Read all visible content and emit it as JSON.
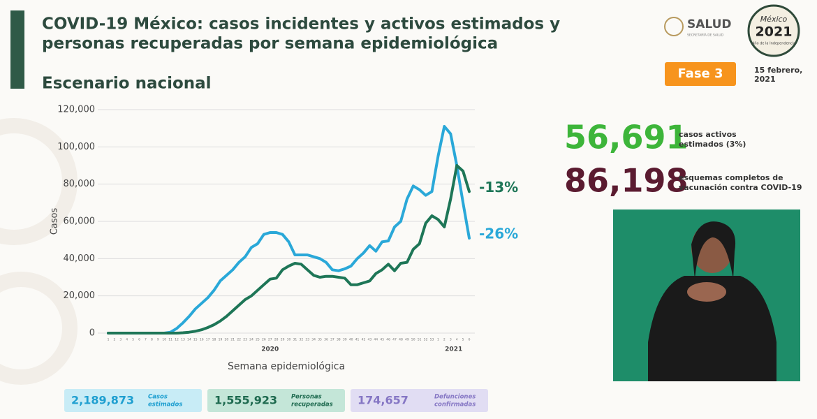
{
  "header": {
    "title_lines": [
      "COVID-19 México: casos incidentes y activos estimados y",
      "personas recuperadas por semana epidemiológica"
    ],
    "subtitle": "Escenario nacional"
  },
  "logos": {
    "salud": "SALUD",
    "salud_sub": "SECRETARÍA DE SALUD",
    "badge_top": "México",
    "badge_year": "2021",
    "badge_sub": "Año de la Independencia"
  },
  "phase": "Fase 3",
  "date_lines": [
    "15 febrero,",
    "2021"
  ],
  "highlights": [
    {
      "value": "56,691",
      "label_lines": [
        "casos activos",
        "estimados (3%)"
      ],
      "color": "#3db53a"
    },
    {
      "value": "86,198",
      "label_lines": [
        "esquemas completos de",
        "vacunación contra COVID-19"
      ],
      "color": "#5b1b30"
    }
  ],
  "chart_data": {
    "type": "line",
    "xlabel": "Semana epidemiológica",
    "ylabel": "Casos",
    "categories": [
      "1",
      "2",
      "3",
      "4",
      "5",
      "6",
      "7",
      "8",
      "9",
      "10",
      "11",
      "12",
      "13",
      "14",
      "15",
      "16",
      "17",
      "18",
      "19",
      "20",
      "21",
      "22",
      "23",
      "24",
      "25",
      "26",
      "27",
      "28",
      "29",
      "30",
      "31",
      "32",
      "33",
      "34",
      "35",
      "36",
      "37",
      "38",
      "39",
      "40",
      "41",
      "42",
      "43",
      "44",
      "45",
      "46",
      "47",
      "48",
      "49",
      "50",
      "51",
      "52",
      "53",
      "1",
      "2",
      "3",
      "4",
      "5",
      "6"
    ],
    "x_group_labels": [
      "2020",
      "2021"
    ],
    "series": [
      {
        "color": "#2aa8d8",
        "end_label": "-26%",
        "values": [
          0,
          0,
          0,
          0,
          0,
          0,
          0,
          0,
          0,
          0,
          500,
          2500,
          5500,
          9000,
          13000,
          16000,
          19000,
          23000,
          28000,
          31000,
          34000,
          38000,
          41000,
          46000,
          48000,
          53000,
          54000,
          54000,
          53000,
          49000,
          42000,
          42000,
          42000,
          41000,
          40000,
          38000,
          34000,
          33500,
          34500,
          36000,
          40000,
          43000,
          47000,
          44000,
          49000,
          49500,
          57000,
          60000,
          72000,
          79000,
          77000,
          74000,
          76000,
          95000,
          111000,
          107000,
          90000,
          70000,
          51000
        ]
      },
      {
        "color": "#1e7657",
        "end_label": "-13%",
        "values": [
          0,
          0,
          0,
          0,
          0,
          0,
          0,
          0,
          0,
          0,
          0,
          0,
          200,
          500,
          1000,
          1800,
          3000,
          4500,
          6500,
          9000,
          12000,
          15000,
          18000,
          20000,
          23000,
          26000,
          29000,
          29500,
          34000,
          36000,
          37500,
          37000,
          34000,
          31000,
          30000,
          30500,
          30500,
          30000,
          29500,
          26000,
          26000,
          27000,
          28000,
          32000,
          34000,
          37000,
          33500,
          37500,
          38000,
          45000,
          48000,
          59000,
          63000,
          61000,
          57000,
          72000,
          90000,
          87000,
          76000
        ]
      }
    ],
    "ylim": [
      0,
      120000
    ],
    "yticks": [
      0,
      {
        "value": 20000,
        "label": "20,000"
      },
      {
        "value": 40000,
        "label": "40,000"
      },
      {
        "value": 60000,
        "label": "60,000"
      },
      {
        "value": 80000,
        "label": "80,000"
      },
      {
        "value": 100000,
        "label": "100,000"
      },
      {
        "value": 120000,
        "label": "120,000"
      }
    ],
    "grid": true
  },
  "totals": [
    {
      "value": "2,189,873",
      "label_lines": [
        "Casos",
        "estimados"
      ],
      "bg": "#c8ecf6",
      "color": "#1f9fd0"
    },
    {
      "value": "1,555,923",
      "label_lines": [
        "Personas",
        "recuperadas"
      ],
      "bg": "#c4e6d8",
      "color": "#1e6a4f"
    },
    {
      "value": "174,657",
      "label_lines": [
        "Defunciones",
        "confirmadas"
      ],
      "bg": "#e1ddf3",
      "color": "#8576c4"
    }
  ]
}
